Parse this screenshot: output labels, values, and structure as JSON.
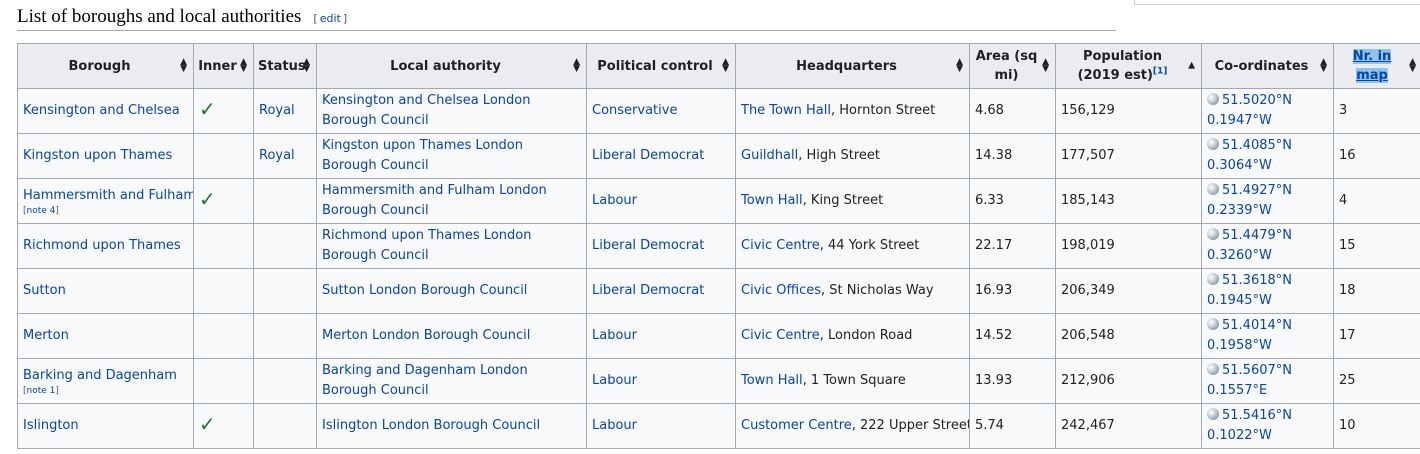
{
  "section": {
    "title": "List of boroughs and local authorities",
    "edit_label": "edit",
    "bracket_open": "[",
    "bracket_close": "]"
  },
  "columns": {
    "borough": "Borough",
    "inner": "Inner",
    "status": "Status",
    "local_authority": "Local authority",
    "political_control": "Political control",
    "headquarters": "Headquarters",
    "area": "Area (sq mi)",
    "population": "Population (2019 est)",
    "population_ref": "[1]",
    "coordinates": "Co-ordinates",
    "nr_in_map": "Nr. in map"
  },
  "rows": [
    {
      "borough": "Kensington and Chelsea",
      "note": "",
      "inner": true,
      "status": "Royal",
      "authority": "Kensington and Chelsea London Borough Council",
      "control": "Conservative",
      "hq_link": "The Town Hall",
      "hq_rest": ", Hornton Street",
      "area": "4.68",
      "population": "156,129",
      "lat": "51.5020°N",
      "lon": "0.1947°W",
      "nr": "3"
    },
    {
      "borough": "Kingston upon Thames",
      "note": "",
      "inner": false,
      "status": "Royal",
      "authority": "Kingston upon Thames London Borough Council",
      "control": "Liberal Democrat",
      "hq_link": "Guildhall",
      "hq_rest": ", High Street",
      "area": "14.38",
      "population": "177,507",
      "lat": "51.4085°N",
      "lon": "0.3064°W",
      "nr": "16"
    },
    {
      "borough": "Hammersmith and Fulham",
      "note": "note 4",
      "inner": true,
      "status": "",
      "authority": "Hammersmith and Fulham London Borough Council",
      "control": "Labour",
      "hq_link": "Town Hall",
      "hq_rest": ", King Street",
      "area": "6.33",
      "population": "185,143",
      "lat": "51.4927°N",
      "lon": "0.2339°W",
      "nr": "4"
    },
    {
      "borough": "Richmond upon Thames",
      "note": "",
      "inner": false,
      "status": "",
      "authority": "Richmond upon Thames London Borough Council",
      "control": "Liberal Democrat",
      "hq_link": "Civic Centre",
      "hq_rest": ", 44 York Street",
      "area": "22.17",
      "population": "198,019",
      "lat": "51.4479°N",
      "lon": "0.3260°W",
      "nr": "15"
    },
    {
      "borough": "Sutton",
      "note": "",
      "inner": false,
      "status": "",
      "authority": "Sutton London Borough Council",
      "control": "Liberal Democrat",
      "hq_link": "Civic Offices",
      "hq_rest": ", St Nicholas Way",
      "area": "16.93",
      "population": "206,349",
      "lat": "51.3618°N",
      "lon": "0.1945°W",
      "nr": "18"
    },
    {
      "borough": "Merton",
      "note": "",
      "inner": false,
      "status": "",
      "authority": "Merton London Borough Council",
      "control": "Labour",
      "hq_link": "Civic Centre",
      "hq_rest": ", London Road",
      "area": "14.52",
      "population": "206,548",
      "lat": "51.4014°N",
      "lon": "0.1958°W",
      "nr": "17"
    },
    {
      "borough": "Barking and Dagenham",
      "note": "note 1",
      "inner": false,
      "status": "",
      "authority": "Barking and Dagenham London Borough Council",
      "control": "Labour",
      "hq_link": "Town Hall",
      "hq_rest": ", 1 Town Square",
      "area": "13.93",
      "population": "212,906",
      "lat": "51.5607°N",
      "lon": "0.1557°E",
      "nr": "25"
    },
    {
      "borough": "Islington",
      "note": "",
      "inner": true,
      "status": "",
      "authority": "Islington London Borough Council",
      "control": "Labour",
      "hq_link": "Customer Centre",
      "hq_rest": ", 222 Upper Street",
      "area": "5.74",
      "population": "242,467",
      "lat": "51.5416°N",
      "lon": "0.1022°W",
      "nr": "10"
    }
  ],
  "icons": {
    "check": "check-mark-icon",
    "globe": "globe-icon",
    "sort": "sort-arrows-icon"
  },
  "colors": {
    "link": "#0645ad",
    "check": "#1a7a2e",
    "header_bg": "#eaecf0",
    "highlight": "#8fc3e8"
  }
}
